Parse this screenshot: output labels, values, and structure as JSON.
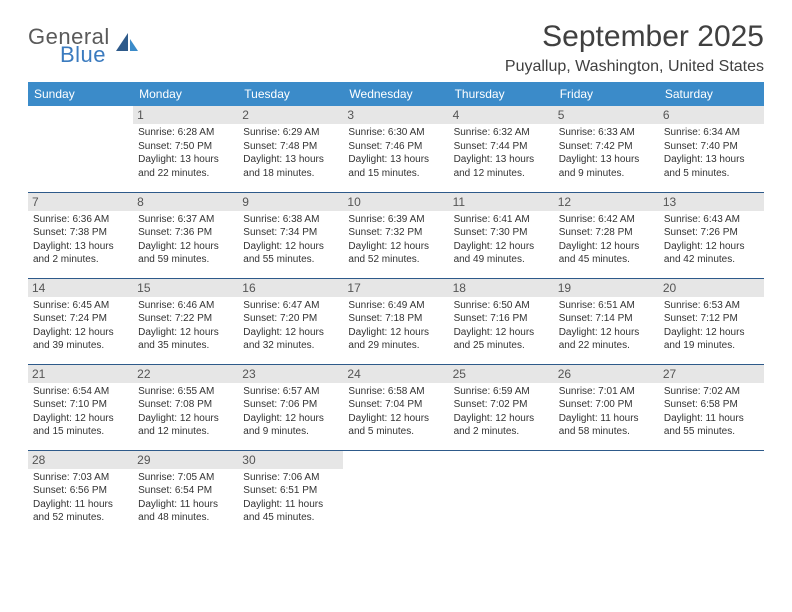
{
  "logo": {
    "general": "General",
    "blue": "Blue"
  },
  "title": "September 2025",
  "location": "Puyallup, Washington, United States",
  "colors": {
    "header_bg": "#3b8bc9",
    "header_text": "#ffffff",
    "daynum_bg": "#e6e6e6",
    "border": "#2e5a8a",
    "logo_blue": "#3b7bbf",
    "text": "#333333"
  },
  "days_of_week": [
    "Sunday",
    "Monday",
    "Tuesday",
    "Wednesday",
    "Thursday",
    "Friday",
    "Saturday"
  ],
  "weeks": [
    [
      null,
      {
        "n": "1",
        "sr": "Sunrise: 6:28 AM",
        "ss": "Sunset: 7:50 PM",
        "d1": "Daylight: 13 hours",
        "d2": "and 22 minutes."
      },
      {
        "n": "2",
        "sr": "Sunrise: 6:29 AM",
        "ss": "Sunset: 7:48 PM",
        "d1": "Daylight: 13 hours",
        "d2": "and 18 minutes."
      },
      {
        "n": "3",
        "sr": "Sunrise: 6:30 AM",
        "ss": "Sunset: 7:46 PM",
        "d1": "Daylight: 13 hours",
        "d2": "and 15 minutes."
      },
      {
        "n": "4",
        "sr": "Sunrise: 6:32 AM",
        "ss": "Sunset: 7:44 PM",
        "d1": "Daylight: 13 hours",
        "d2": "and 12 minutes."
      },
      {
        "n": "5",
        "sr": "Sunrise: 6:33 AM",
        "ss": "Sunset: 7:42 PM",
        "d1": "Daylight: 13 hours",
        "d2": "and 9 minutes."
      },
      {
        "n": "6",
        "sr": "Sunrise: 6:34 AM",
        "ss": "Sunset: 7:40 PM",
        "d1": "Daylight: 13 hours",
        "d2": "and 5 minutes."
      }
    ],
    [
      {
        "n": "7",
        "sr": "Sunrise: 6:36 AM",
        "ss": "Sunset: 7:38 PM",
        "d1": "Daylight: 13 hours",
        "d2": "and 2 minutes."
      },
      {
        "n": "8",
        "sr": "Sunrise: 6:37 AM",
        "ss": "Sunset: 7:36 PM",
        "d1": "Daylight: 12 hours",
        "d2": "and 59 minutes."
      },
      {
        "n": "9",
        "sr": "Sunrise: 6:38 AM",
        "ss": "Sunset: 7:34 PM",
        "d1": "Daylight: 12 hours",
        "d2": "and 55 minutes."
      },
      {
        "n": "10",
        "sr": "Sunrise: 6:39 AM",
        "ss": "Sunset: 7:32 PM",
        "d1": "Daylight: 12 hours",
        "d2": "and 52 minutes."
      },
      {
        "n": "11",
        "sr": "Sunrise: 6:41 AM",
        "ss": "Sunset: 7:30 PM",
        "d1": "Daylight: 12 hours",
        "d2": "and 49 minutes."
      },
      {
        "n": "12",
        "sr": "Sunrise: 6:42 AM",
        "ss": "Sunset: 7:28 PM",
        "d1": "Daylight: 12 hours",
        "d2": "and 45 minutes."
      },
      {
        "n": "13",
        "sr": "Sunrise: 6:43 AM",
        "ss": "Sunset: 7:26 PM",
        "d1": "Daylight: 12 hours",
        "d2": "and 42 minutes."
      }
    ],
    [
      {
        "n": "14",
        "sr": "Sunrise: 6:45 AM",
        "ss": "Sunset: 7:24 PM",
        "d1": "Daylight: 12 hours",
        "d2": "and 39 minutes."
      },
      {
        "n": "15",
        "sr": "Sunrise: 6:46 AM",
        "ss": "Sunset: 7:22 PM",
        "d1": "Daylight: 12 hours",
        "d2": "and 35 minutes."
      },
      {
        "n": "16",
        "sr": "Sunrise: 6:47 AM",
        "ss": "Sunset: 7:20 PM",
        "d1": "Daylight: 12 hours",
        "d2": "and 32 minutes."
      },
      {
        "n": "17",
        "sr": "Sunrise: 6:49 AM",
        "ss": "Sunset: 7:18 PM",
        "d1": "Daylight: 12 hours",
        "d2": "and 29 minutes."
      },
      {
        "n": "18",
        "sr": "Sunrise: 6:50 AM",
        "ss": "Sunset: 7:16 PM",
        "d1": "Daylight: 12 hours",
        "d2": "and 25 minutes."
      },
      {
        "n": "19",
        "sr": "Sunrise: 6:51 AM",
        "ss": "Sunset: 7:14 PM",
        "d1": "Daylight: 12 hours",
        "d2": "and 22 minutes."
      },
      {
        "n": "20",
        "sr": "Sunrise: 6:53 AM",
        "ss": "Sunset: 7:12 PM",
        "d1": "Daylight: 12 hours",
        "d2": "and 19 minutes."
      }
    ],
    [
      {
        "n": "21",
        "sr": "Sunrise: 6:54 AM",
        "ss": "Sunset: 7:10 PM",
        "d1": "Daylight: 12 hours",
        "d2": "and 15 minutes."
      },
      {
        "n": "22",
        "sr": "Sunrise: 6:55 AM",
        "ss": "Sunset: 7:08 PM",
        "d1": "Daylight: 12 hours",
        "d2": "and 12 minutes."
      },
      {
        "n": "23",
        "sr": "Sunrise: 6:57 AM",
        "ss": "Sunset: 7:06 PM",
        "d1": "Daylight: 12 hours",
        "d2": "and 9 minutes."
      },
      {
        "n": "24",
        "sr": "Sunrise: 6:58 AM",
        "ss": "Sunset: 7:04 PM",
        "d1": "Daylight: 12 hours",
        "d2": "and 5 minutes."
      },
      {
        "n": "25",
        "sr": "Sunrise: 6:59 AM",
        "ss": "Sunset: 7:02 PM",
        "d1": "Daylight: 12 hours",
        "d2": "and 2 minutes."
      },
      {
        "n": "26",
        "sr": "Sunrise: 7:01 AM",
        "ss": "Sunset: 7:00 PM",
        "d1": "Daylight: 11 hours",
        "d2": "and 58 minutes."
      },
      {
        "n": "27",
        "sr": "Sunrise: 7:02 AM",
        "ss": "Sunset: 6:58 PM",
        "d1": "Daylight: 11 hours",
        "d2": "and 55 minutes."
      }
    ],
    [
      {
        "n": "28",
        "sr": "Sunrise: 7:03 AM",
        "ss": "Sunset: 6:56 PM",
        "d1": "Daylight: 11 hours",
        "d2": "and 52 minutes."
      },
      {
        "n": "29",
        "sr": "Sunrise: 7:05 AM",
        "ss": "Sunset: 6:54 PM",
        "d1": "Daylight: 11 hours",
        "d2": "and 48 minutes."
      },
      {
        "n": "30",
        "sr": "Sunrise: 7:06 AM",
        "ss": "Sunset: 6:51 PM",
        "d1": "Daylight: 11 hours",
        "d2": "and 45 minutes."
      },
      null,
      null,
      null,
      null
    ]
  ]
}
